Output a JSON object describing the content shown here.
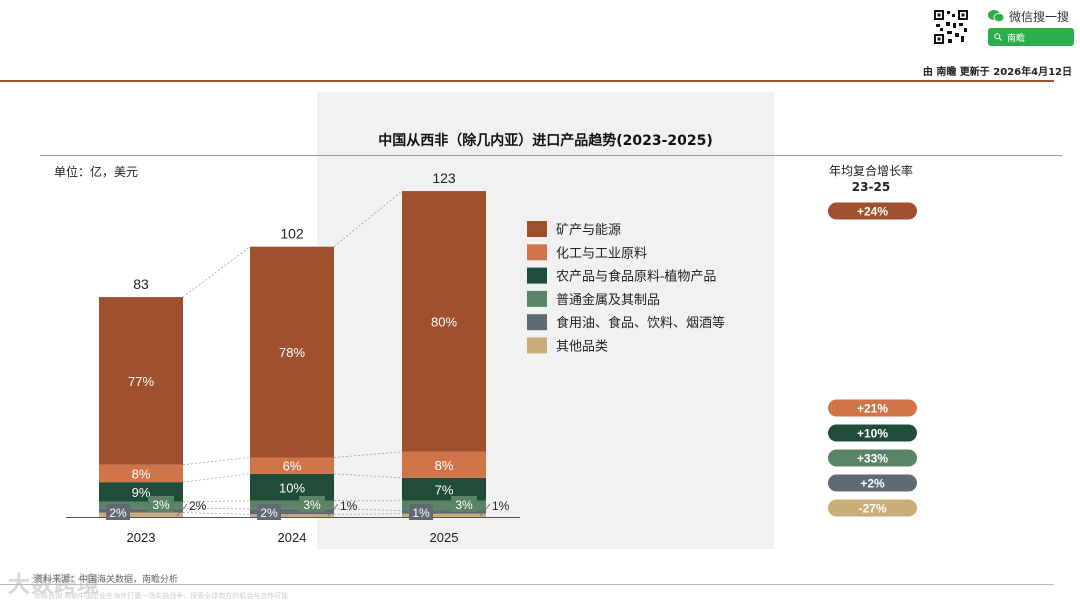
{
  "header": {
    "wechat_label": "微信搜一搜",
    "wechat_search": "南瞻",
    "updated": "由 南瞻 更新于 2026年4月12日"
  },
  "chart_data": {
    "type": "bar",
    "title": "中国从西非（除几内亚）进口产品趋势(2023-2025)",
    "unit": "单位：亿，美元",
    "categories": [
      "2023",
      "2024",
      "2025"
    ],
    "totals": [
      83,
      102,
      123
    ],
    "ylim": [
      0,
      130
    ],
    "series": [
      {
        "name": "矿产与能源",
        "color": "#a0502e",
        "values": [
          77,
          78,
          80
        ],
        "labels": [
          "77%",
          "78%",
          "80%"
        ]
      },
      {
        "name": "化工与工业原料",
        "color": "#d0754a",
        "values": [
          8,
          6,
          8
        ],
        "labels": [
          "8%",
          "6%",
          "8%"
        ]
      },
      {
        "name": "农产品与食品原料-植物产品",
        "color": "#1f4d3a",
        "values": [
          9,
          10,
          7
        ],
        "labels": [
          "9%",
          "10%",
          "7%"
        ]
      },
      {
        "name": "普通金属及其制品",
        "color": "#5a8466",
        "values": [
          3,
          3,
          3
        ],
        "labels": [
          "3%",
          "3%",
          "3%"
        ]
      },
      {
        "name": "食用油、食品、饮料、烟酒等",
        "color": "#5f6a73",
        "values": [
          2,
          2,
          1
        ],
        "labels": [
          "2%",
          "2%",
          "1%"
        ]
      },
      {
        "name": "其他品类",
        "color": "#c9ae7a",
        "values": [
          2,
          1,
          1
        ],
        "labels": [
          "2%",
          "1%",
          "1%"
        ]
      }
    ],
    "cagr": {
      "title": "年均复合增长率",
      "period": "23-25",
      "values": [
        "+24%",
        "+21%",
        "+10%",
        "+33%",
        "+2%",
        "-27%"
      ]
    }
  },
  "footer": {
    "source": "资料来源：中国海关数据，南瞻分析",
    "disclaimer": "南瞻咨询  帮助中国企业在海外打赢一场实施战争，探索全球南方的机会与合作可能",
    "watermark": "大数跨境"
  }
}
